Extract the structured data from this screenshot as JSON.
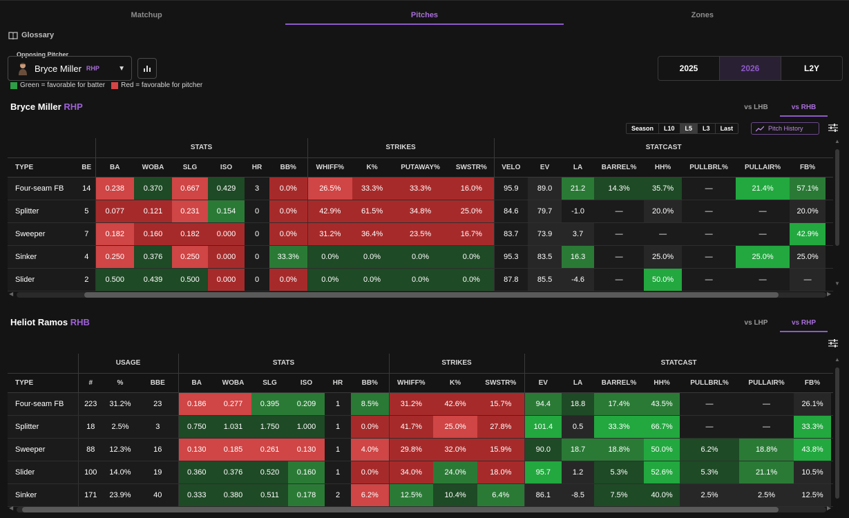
{
  "tabs": [
    "Matchup",
    "Pitches",
    "Zones"
  ],
  "active_tab": 1,
  "glossary_label": "Glossary",
  "pitcher_select": {
    "label": "Opposing Pitcher",
    "name": "Bryce Miller",
    "hand": "RHP"
  },
  "legend": {
    "green_text": "Green = favorable for batter",
    "red_text": "Red = favorable for pitcher",
    "green": "#2d9e47",
    "red": "#d64545"
  },
  "years": [
    "2025",
    "2026",
    "L2Y"
  ],
  "active_year": 1,
  "colors": {
    "bg": "#141414",
    "dark": "#1b1b1b",
    "dark2": "#272727",
    "g1": "#1e4a25",
    "g2": "#2a7a36",
    "g3": "#22a83f",
    "r1": "#7a1e1e",
    "r2": "#a72a2a",
    "r3": "#d04545",
    "accent": "#8e5ac9"
  },
  "pitcher_section": {
    "name": "Bryce Miller",
    "hand": "RHP",
    "splits": [
      "vs LHB",
      "vs RHB"
    ],
    "active_split": 1,
    "ranges": [
      "Season",
      "L10",
      "L5",
      "L3",
      "Last"
    ],
    "active_range": 2,
    "pitch_history": "Pitch History",
    "groups": [
      {
        "label": "",
        "span": 2
      },
      {
        "label": "STATS",
        "span": 6
      },
      {
        "label": "STRIKES",
        "span": 4
      },
      {
        "label": "STATCAST",
        "span": 9
      }
    ],
    "columns": [
      "TYPE",
      "BE",
      "BA",
      "WOBA",
      "SLG",
      "ISO",
      "HR",
      "BB%",
      "WHIFF%",
      "K%",
      "PUTAWAY%",
      "SWSTR%",
      "VELO",
      "EV",
      "LA",
      "BARREL%",
      "HH%",
      "PULLBRL%",
      "PULLAIR%",
      "FB%",
      ""
    ],
    "rows": [
      [
        "Four-seam FB",
        "14",
        "0.238",
        "0.370",
        "0.667",
        "0.429",
        "3",
        "0.0%",
        "26.5%",
        "33.3%",
        "33.3%",
        "16.0%",
        "95.9",
        "89.0",
        "21.2",
        "14.3%",
        "35.7%",
        "—",
        "21.4%",
        "57.1%"
      ],
      [
        "Splitter",
        "5",
        "0.077",
        "0.121",
        "0.231",
        "0.154",
        "0",
        "0.0%",
        "42.9%",
        "61.5%",
        "34.8%",
        "25.0%",
        "84.6",
        "79.7",
        "-1.0",
        "—",
        "20.0%",
        "—",
        "—",
        "20.0%"
      ],
      [
        "Sweeper",
        "7",
        "0.182",
        "0.160",
        "0.182",
        "0.000",
        "0",
        "0.0%",
        "31.2%",
        "36.4%",
        "23.5%",
        "16.7%",
        "83.7",
        "73.9",
        "3.7",
        "—",
        "—",
        "—",
        "—",
        "42.9%"
      ],
      [
        "Sinker",
        "4",
        "0.250",
        "0.376",
        "0.250",
        "0.000",
        "0",
        "33.3%",
        "0.0%",
        "0.0%",
        "0.0%",
        "0.0%",
        "95.3",
        "83.5",
        "16.3",
        "—",
        "25.0%",
        "—",
        "25.0%",
        "25.0%"
      ],
      [
        "Slider",
        "2",
        "0.500",
        "0.439",
        "0.500",
        "0.000",
        "0",
        "0.0%",
        "0.0%",
        "0.0%",
        "0.0%",
        "0.0%",
        "87.8",
        "85.5",
        "-4.6",
        "—",
        "50.0%",
        "—",
        "—",
        "—"
      ]
    ]
  },
  "batter_section": {
    "name": "Heliot Ramos",
    "hand": "RHB",
    "splits": [
      "vs LHP",
      "vs RHP"
    ],
    "active_split": 1,
    "groups": [
      {
        "label": "",
        "span": 1
      },
      {
        "label": "USAGE",
        "span": 3
      },
      {
        "label": "STATS",
        "span": 6
      },
      {
        "label": "STRIKES",
        "span": 3
      },
      {
        "label": "STATCAST",
        "span": 8
      }
    ],
    "columns": [
      "TYPE",
      "#",
      "%",
      "BBE",
      "BA",
      "WOBA",
      "SLG",
      "ISO",
      "HR",
      "BB%",
      "WHIFF%",
      "K%",
      "SWSTR%",
      "EV",
      "LA",
      "BARREL%",
      "HH%",
      "PULLBRL%",
      "PULLAIR%",
      "FB%",
      ""
    ],
    "rows": [
      [
        "Four-seam FB",
        "223",
        "31.2%",
        "23",
        "0.186",
        "0.277",
        "0.395",
        "0.209",
        "1",
        "8.5%",
        "31.2%",
        "42.6%",
        "15.7%",
        "94.4",
        "18.8",
        "17.4%",
        "43.5%",
        "—",
        "—",
        "26.1%"
      ],
      [
        "Splitter",
        "18",
        "2.5%",
        "3",
        "0.750",
        "1.031",
        "1.750",
        "1.000",
        "1",
        "0.0%",
        "41.7%",
        "25.0%",
        "27.8%",
        "101.4",
        "0.5",
        "33.3%",
        "66.7%",
        "—",
        "—",
        "33.3%"
      ],
      [
        "Sweeper",
        "88",
        "12.3%",
        "16",
        "0.130",
        "0.185",
        "0.261",
        "0.130",
        "1",
        "4.0%",
        "29.8%",
        "32.0%",
        "15.9%",
        "90.0",
        "18.7",
        "18.8%",
        "50.0%",
        "6.2%",
        "18.8%",
        "43.8%"
      ],
      [
        "Slider",
        "100",
        "14.0%",
        "19",
        "0.360",
        "0.376",
        "0.520",
        "0.160",
        "1",
        "0.0%",
        "34.0%",
        "24.0%",
        "18.0%",
        "95.7",
        "1.2",
        "5.3%",
        "52.6%",
        "5.3%",
        "21.1%",
        "10.5%"
      ],
      [
        "Sinker",
        "171",
        "23.9%",
        "40",
        "0.333",
        "0.380",
        "0.511",
        "0.178",
        "2",
        "6.2%",
        "12.5%",
        "10.4%",
        "6.4%",
        "86.1",
        "-8.5",
        "7.5%",
        "40.0%",
        "2.5%",
        "2.5%",
        "12.5%"
      ]
    ]
  }
}
